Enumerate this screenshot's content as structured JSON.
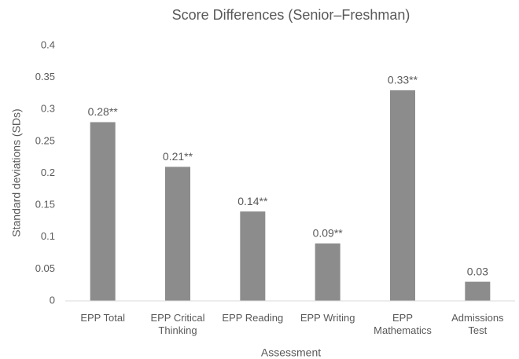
{
  "chart_data": {
    "type": "bar",
    "title": "Score Differences (Senior–Freshman)",
    "x_label": "Assessment",
    "y_label": "Standard deviations (SDs)",
    "categories": [
      "EPP Total",
      "EPP Critical Thinking",
      "EPP Reading",
      "EPP Writing",
      "EPP Mathematics",
      "Admissions Test"
    ],
    "values": [
      0.28,
      0.21,
      0.14,
      0.09,
      0.33,
      0.03
    ],
    "value_labels": [
      "0.28**",
      "0.21**",
      "0.14**",
      "0.09**",
      "0.33**",
      "0.03"
    ],
    "color": "#8c8c8c",
    "ylim": [
      0,
      0.4
    ],
    "yticks": [
      0,
      0.05,
      0.1,
      0.15,
      0.2,
      0.25,
      0.3,
      0.35,
      0.4
    ],
    "grid": false
  }
}
